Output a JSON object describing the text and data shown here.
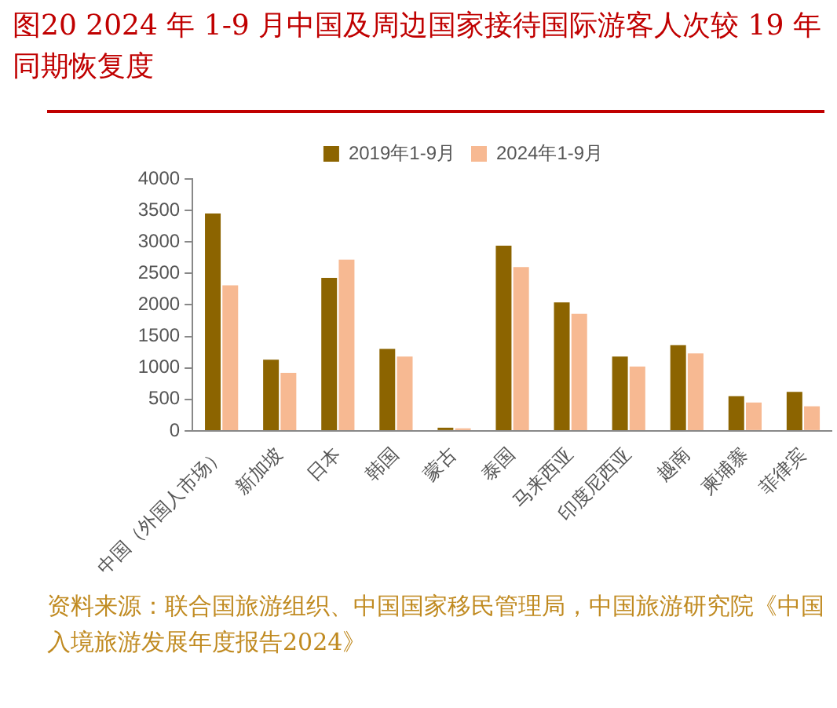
{
  "chart_data": {
    "type": "bar",
    "title": "图20   2024 年 1-9 月中国及周边国家接待国际游客人次较 19 年同期恢复度",
    "categories": [
      "中国（外国人市场）",
      "新加坡",
      "日本",
      "韩国",
      "蒙古",
      "泰国",
      "马来西亚",
      "印度尼西亚",
      "越南",
      "柬埔寨",
      "菲律宾"
    ],
    "series": [
      {
        "name": "2019年1-9月",
        "color": "#8c6400",
        "values": [
          3450,
          1130,
          2430,
          1300,
          50,
          2940,
          2040,
          1180,
          1360,
          550,
          620
        ]
      },
      {
        "name": "2024年1-9月",
        "color": "#f7b992",
        "values": [
          2310,
          920,
          2720,
          1180,
          40,
          2600,
          1860,
          1020,
          1230,
          450,
          390
        ]
      }
    ],
    "ylim": [
      0,
      4000
    ],
    "yticks": [
      0,
      500,
      1000,
      1500,
      2000,
      2500,
      3000,
      3500,
      4000
    ],
    "grid": false,
    "legend": "top",
    "annotations": [
      "资料来源：联合国旅游组织、中国国家移民管理局，中国旅游研究院《中国入境旅游发展年度报告2024》"
    ]
  }
}
